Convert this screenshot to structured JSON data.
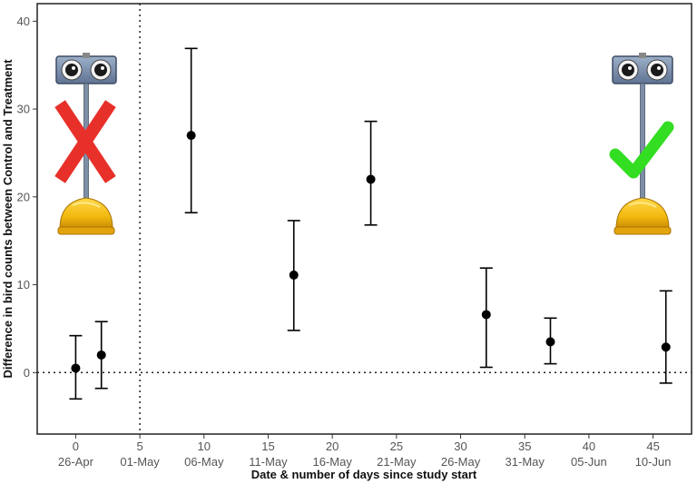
{
  "chart_data": {
    "type": "scatter",
    "xlabel": "Date & number of days since study start",
    "ylabel": "Difference in bird counts between Control and Treatment",
    "xlim": [
      -3,
      48
    ],
    "ylim": [
      -7,
      42
    ],
    "x_ticks": [
      {
        "value": 0,
        "date": "26-Apr"
      },
      {
        "value": 5,
        "date": "01-May"
      },
      {
        "value": 10,
        "date": "06-May"
      },
      {
        "value": 15,
        "date": "11-May"
      },
      {
        "value": 20,
        "date": "16-May"
      },
      {
        "value": 25,
        "date": "21-May"
      },
      {
        "value": 30,
        "date": "26-May"
      },
      {
        "value": 35,
        "date": "31-May"
      },
      {
        "value": 40,
        "date": "05-Jun"
      },
      {
        "value": 45,
        "date": "10-Jun"
      }
    ],
    "y_ticks": [
      0,
      10,
      20,
      30,
      40
    ],
    "points": [
      {
        "x": 0,
        "y": 0.5,
        "lower": -3.0,
        "upper": 4.2
      },
      {
        "x": 2,
        "y": 2.0,
        "lower": -1.8,
        "upper": 5.8
      },
      {
        "x": 9,
        "y": 27.0,
        "lower": 18.2,
        "upper": 36.9
      },
      {
        "x": 17,
        "y": 11.1,
        "lower": 4.8,
        "upper": 17.3
      },
      {
        "x": 23,
        "y": 22.0,
        "lower": 16.8,
        "upper": 28.6
      },
      {
        "x": 32,
        "y": 6.6,
        "lower": 0.6,
        "upper": 11.9
      },
      {
        "x": 37,
        "y": 3.5,
        "lower": 1.0,
        "upper": 6.2
      },
      {
        "x": 46,
        "y": 2.9,
        "lower": -1.2,
        "upper": 9.3
      }
    ],
    "reference_lines": {
      "horizontal_y": 0,
      "vertical_x": 5
    },
    "grid": false,
    "legend": "none",
    "colors": {
      "point": "#000000",
      "cross": "#e8302a",
      "check": "#33dd22",
      "helmet": "#f2b90f"
    }
  },
  "illustrations": {
    "left": {
      "icon": "scarecrow-device-icon",
      "status": "cross-icon"
    },
    "right": {
      "icon": "scarecrow-device-icon",
      "status": "check-icon"
    }
  }
}
